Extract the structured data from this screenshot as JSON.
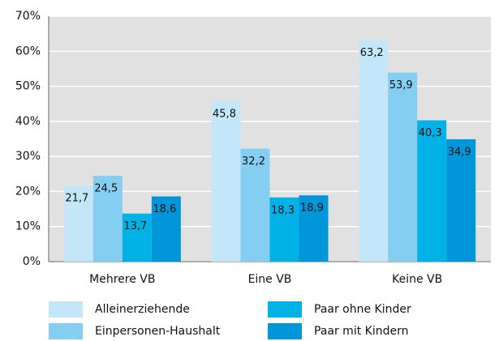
{
  "chart_data": {
    "type": "bar",
    "categories": [
      "Mehrere VB",
      "Eine VB",
      "Keine VB"
    ],
    "series": [
      {
        "name": "Alleinerziehende",
        "color": "#c3e6f8",
        "values": [
          21.7,
          45.8,
          63.2
        ],
        "value_labels": [
          "21,7",
          "45,8",
          "63,2"
        ]
      },
      {
        "name": "Einpersonen-Haushalt",
        "color": "#84cef1",
        "values": [
          24.5,
          32.2,
          53.9
        ],
        "value_labels": [
          "24,5",
          "32,2",
          "53,9"
        ]
      },
      {
        "name": "Paar ohne Kinder",
        "color": "#00b2e6",
        "values": [
          13.7,
          18.3,
          40.3
        ],
        "value_labels": [
          "13,7",
          "18,3",
          "40,3"
        ]
      },
      {
        "name": "Paar mit Kindern",
        "color": "#0096da",
        "values": [
          18.6,
          18.9,
          34.9
        ],
        "value_labels": [
          "18,6",
          "18,9",
          "34,9"
        ]
      }
    ],
    "ylim": [
      0,
      70
    ],
    "yticks": [
      {
        "value": 0,
        "label": "0%"
      },
      {
        "value": 10,
        "label": "10%"
      },
      {
        "value": 20,
        "label": "20%"
      },
      {
        "value": 30,
        "label": "30%"
      },
      {
        "value": 40,
        "label": "40%"
      },
      {
        "value": 50,
        "label": "50%"
      },
      {
        "value": 60,
        "label": "60%"
      },
      {
        "value": 70,
        "label": "70%"
      }
    ],
    "grid": true,
    "legend": "bottom"
  }
}
